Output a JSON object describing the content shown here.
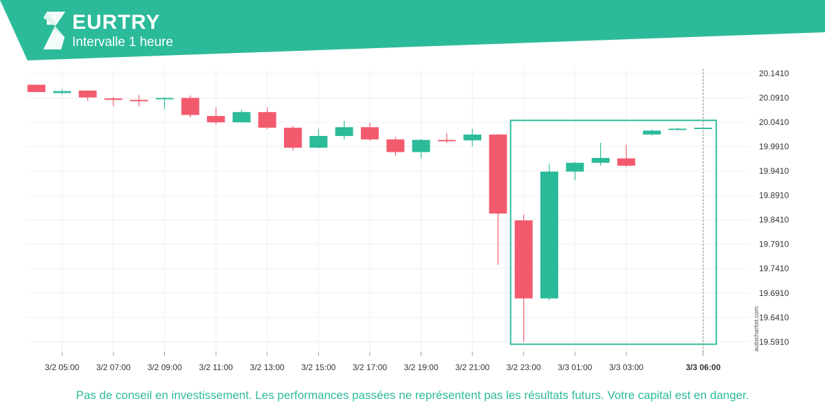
{
  "header": {
    "title": "EURTRY",
    "subtitle": "Intervalle 1 heure",
    "bg_color": "#2cbb9a",
    "logo_icon": "autochartist-logo-icon"
  },
  "footer": {
    "disclaimer": "Pas de conseil en investissement. Les performances passées ne représentent pas les résultats futurs. Votre capital est en danger."
  },
  "watermark": "autochartist.com",
  "colors": {
    "bullish": "#2cbb9a",
    "bearish": "#f25b6e",
    "pattern_box": "#2cbb9a",
    "grid": "#f0f0f0"
  },
  "chart_data": {
    "type": "candlestick",
    "y_axis_position": "right",
    "ylim": [
      19.571,
      20.151
    ],
    "y_ticks": [
      "20.1410",
      "20.0910",
      "20.0410",
      "19.9910",
      "19.9410",
      "19.8910",
      "19.8410",
      "19.7910",
      "19.7410",
      "19.6910",
      "19.6410",
      "19.5910"
    ],
    "x_ticks": [
      "3/2 05:00",
      "3/2 07:00",
      "3/2 09:00",
      "3/2 11:00",
      "3/2 13:00",
      "3/2 15:00",
      "3/2 17:00",
      "3/2 19:00",
      "3/2 21:00",
      "3/2 23:00",
      "3/3 01:00",
      "3/3 03:00",
      "3/3 06:00"
    ],
    "highlight_tick": "3/3 06:00",
    "candles": [
      {
        "time": "3/2 04:00",
        "open": 20.118,
        "high": 20.118,
        "low": 20.103,
        "close": 20.103
      },
      {
        "time": "3/2 05:00",
        "open": 20.101,
        "high": 20.109,
        "low": 20.099,
        "close": 20.105
      },
      {
        "time": "3/2 06:00",
        "open": 20.106,
        "high": 20.107,
        "low": 20.085,
        "close": 20.092
      },
      {
        "time": "3/2 07:00",
        "open": 20.09,
        "high": 20.093,
        "low": 20.074,
        "close": 20.087
      },
      {
        "time": "3/2 08:00",
        "open": 20.087,
        "high": 20.097,
        "low": 20.074,
        "close": 20.086
      },
      {
        "time": "3/2 09:00",
        "open": 20.089,
        "high": 20.092,
        "low": 20.068,
        "close": 20.091
      },
      {
        "time": "3/2 10:00",
        "open": 20.091,
        "high": 20.096,
        "low": 20.051,
        "close": 20.056
      },
      {
        "time": "3/2 11:00",
        "open": 20.054,
        "high": 20.072,
        "low": 20.037,
        "close": 20.041
      },
      {
        "time": "3/2 12:00",
        "open": 20.041,
        "high": 20.067,
        "low": 20.04,
        "close": 20.062
      },
      {
        "time": "3/2 13:00",
        "open": 20.062,
        "high": 20.072,
        "low": 20.027,
        "close": 20.03
      },
      {
        "time": "3/2 14:00",
        "open": 20.03,
        "high": 20.034,
        "low": 19.983,
        "close": 19.989
      },
      {
        "time": "3/2 15:00",
        "open": 19.989,
        "high": 20.027,
        "low": 19.988,
        "close": 20.013
      },
      {
        "time": "3/2 16:00",
        "open": 20.013,
        "high": 20.044,
        "low": 20.006,
        "close": 20.031
      },
      {
        "time": "3/2 17:00",
        "open": 20.031,
        "high": 20.04,
        "low": 20.003,
        "close": 20.006
      },
      {
        "time": "3/2 18:00",
        "open": 20.006,
        "high": 20.011,
        "low": 19.972,
        "close": 19.98
      },
      {
        "time": "3/2 19:00",
        "open": 19.98,
        "high": 20.007,
        "low": 19.967,
        "close": 20.005
      },
      {
        "time": "3/2 20:00",
        "open": 20.005,
        "high": 20.019,
        "low": 19.999,
        "close": 20.004
      },
      {
        "time": "3/2 21:00",
        "open": 20.004,
        "high": 20.028,
        "low": 19.992,
        "close": 20.016
      },
      {
        "time": "3/2 22:00",
        "open": 20.016,
        "high": 20.017,
        "low": 19.749,
        "close": 19.854
      },
      {
        "time": "3/2 23:00",
        "open": 19.84,
        "high": 19.852,
        "low": 19.591,
        "close": 19.68
      },
      {
        "time": "3/3 00:00",
        "open": 19.68,
        "high": 19.956,
        "low": 19.676,
        "close": 19.94
      },
      {
        "time": "3/3 01:00",
        "open": 19.94,
        "high": 19.96,
        "low": 19.922,
        "close": 19.958
      },
      {
        "time": "3/3 02:00",
        "open": 19.958,
        "high": 19.999,
        "low": 19.952,
        "close": 19.968
      },
      {
        "time": "3/3 03:00",
        "open": 19.967,
        "high": 19.995,
        "low": 19.95,
        "close": 19.952
      },
      {
        "time": "3/3 04:00",
        "open": 20.016,
        "high": 20.026,
        "low": 20.014,
        "close": 20.024
      },
      {
        "time": "3/3 05:00",
        "open": 20.027,
        "high": 20.03,
        "low": 20.025,
        "close": 20.028
      },
      {
        "time": "3/3 06:00",
        "open": 20.03,
        "high": 20.031,
        "low": 20.029,
        "close": 20.03
      }
    ],
    "pattern_box": {
      "start": "3/2 23:00",
      "end": "3/3 06:00",
      "top": 20.045,
      "bottom": 19.586
    }
  }
}
